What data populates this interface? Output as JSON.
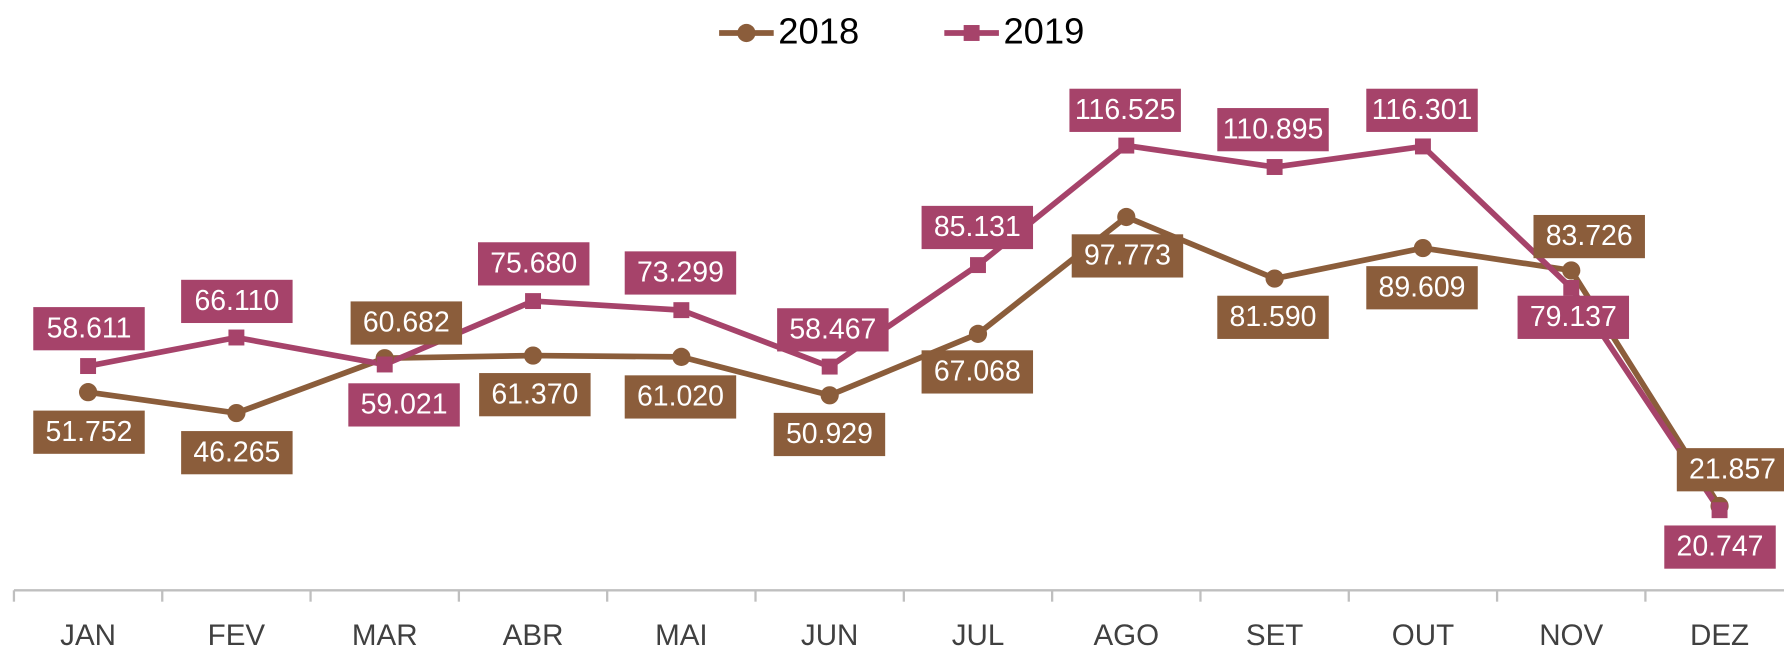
{
  "chart_data": {
    "type": "line",
    "categories": [
      "JAN",
      "FEV",
      "MAR",
      "ABR",
      "MAI",
      "JUN",
      "JUL",
      "AGO",
      "SET",
      "OUT",
      "NOV",
      "DEZ"
    ],
    "series": [
      {
        "name": "2018",
        "color": "#8b5d3b",
        "marker": "circle",
        "values": [
          51752,
          46265,
          60682,
          61370,
          61020,
          50929,
          67068,
          97773,
          81590,
          89609,
          83726,
          21857
        ],
        "value_labels": [
          "51.752",
          "46.265",
          "60.682",
          "61.370",
          "61.020",
          "50.929",
          "67.068",
          "97.773",
          "81.590",
          "89.609",
          "83.726",
          "21.857"
        ]
      },
      {
        "name": "2019",
        "color": "#a6436a",
        "marker": "square",
        "values": [
          58611,
          66110,
          59021,
          75680,
          73299,
          58467,
          85131,
          116525,
          110895,
          116301,
          79137,
          20747
        ],
        "value_labels": [
          "58.611",
          "66.110",
          "59.021",
          "75.680",
          "73.299",
          "58.467",
          "85.131",
          "116.525",
          "110.895",
          "116.301",
          "79.137",
          "20.747"
        ]
      }
    ],
    "legend": "top"
  }
}
